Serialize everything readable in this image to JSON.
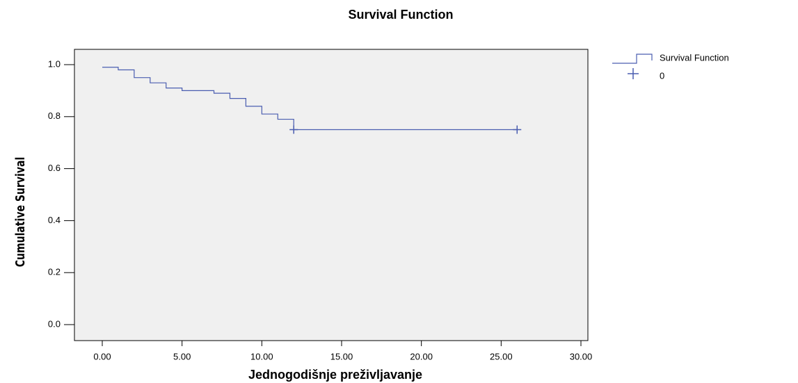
{
  "chart_data": {
    "type": "step",
    "title": "Survival Function",
    "xlabel": "Jednogodišnje preživljavanje",
    "ylabel": "Cumulative Survival",
    "series": [
      {
        "name": "Survival Function",
        "color": "#4a5db0",
        "x": [
          0,
          1,
          2,
          3,
          4,
          5,
          6,
          7,
          8,
          9,
          10,
          11,
          12,
          26
        ],
        "values": [
          0.99,
          0.98,
          0.95,
          0.93,
          0.91,
          0.9,
          0.9,
          0.89,
          0.87,
          0.84,
          0.81,
          0.79,
          0.75,
          0.75
        ]
      },
      {
        "name": "0",
        "color": "#4a5db0",
        "marker": "plus",
        "x": [
          12,
          26
        ],
        "values": [
          0.75,
          0.75
        ]
      }
    ],
    "xlim": [
      0,
      30
    ],
    "xticks": [
      {
        "value": 0,
        "label": "0.00"
      },
      {
        "value": 5,
        "label": "5.00"
      },
      {
        "value": 10,
        "label": "10.00"
      },
      {
        "value": 15,
        "label": "15.00"
      },
      {
        "value": 20,
        "label": "20.00"
      },
      {
        "value": 25,
        "label": "25.00"
      },
      {
        "value": 30,
        "label": "30.00"
      }
    ],
    "ylim": [
      0,
      1
    ],
    "yticks": [
      {
        "value": 0,
        "label": "0.0"
      },
      {
        "value": 0.2,
        "label": "0.2"
      },
      {
        "value": 0.4,
        "label": "0.4"
      },
      {
        "value": 0.6,
        "label": "0.6"
      },
      {
        "value": 0.8,
        "label": "0.8"
      },
      {
        "value": 1,
        "label": "1.0"
      }
    ],
    "legend": "outside-top-right"
  }
}
